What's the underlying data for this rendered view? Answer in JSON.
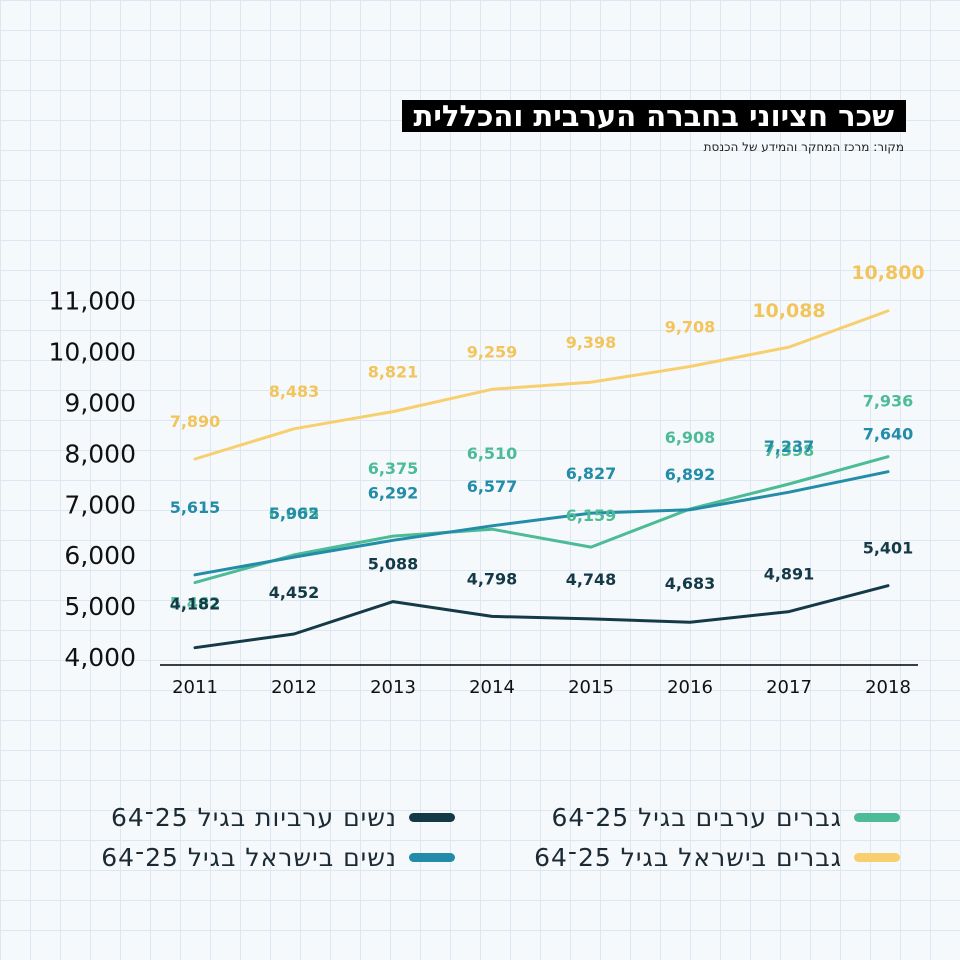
{
  "header": {
    "title": "שכר חציוני בחברה הערבית והכללית",
    "source": "מקור: מרכז המחקר והמידע של הכנסת"
  },
  "chart_data": {
    "type": "line",
    "x": [
      "2011",
      "2012",
      "2013",
      "2014",
      "2015",
      "2016",
      "2017",
      "2018"
    ],
    "yticks": [
      "4,000",
      "5,000",
      "6,000",
      "7,000",
      "8,000",
      "9,000",
      "10,000",
      "11,000"
    ],
    "ylim": [
      4000,
      11000
    ],
    "grid": false,
    "legend_position": "bottom",
    "series": [
      {
        "name": "גברים בישראל בגיל 25־64",
        "color": "#f7cf6e",
        "values": [
          7890,
          8483,
          8821,
          9259,
          9398,
          9708,
          10088,
          10800
        ],
        "labels": [
          "7,890",
          "8,483",
          "8,821",
          "9,259",
          "9,398",
          "9,708",
          "10,088",
          "10,800"
        ]
      },
      {
        "name": "גברים ערבים בגיל 25־64",
        "color": "#4dbb96",
        "values": [
          5462,
          6005,
          6375,
          6510,
          6159,
          6908,
          7398,
          7936
        ],
        "labels": [
          "5,462",
          "6,005",
          "6,375",
          "6,510",
          "6,159",
          "6,908",
          "7,398",
          "7,936"
        ]
      },
      {
        "name": "נשים בישראל בגיל 25־64",
        "color": "#238ca8",
        "values": [
          5615,
          5962,
          6292,
          6577,
          6827,
          6892,
          7237,
          7640
        ],
        "labels": [
          "5,615",
          "5,962",
          "6,292",
          "6,577",
          "6,827",
          "6,892",
          "7,237",
          "7,640"
        ]
      },
      {
        "name": "נשים ערביות בגיל 25־64",
        "color": "#143a47",
        "values": [
          4182,
          4452,
          5088,
          4798,
          4748,
          4683,
          4891,
          5401
        ],
        "labels": [
          "4,182",
          "4,452",
          "5,088",
          "4,798",
          "4,748",
          "4,683",
          "4,891",
          "5,401"
        ]
      }
    ]
  }
}
